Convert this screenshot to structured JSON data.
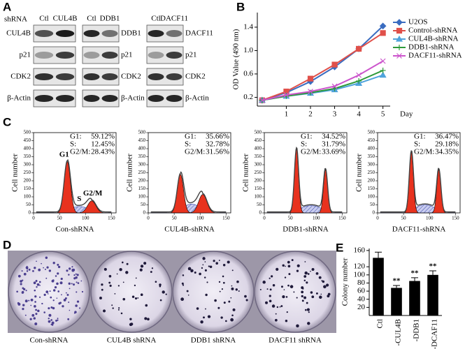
{
  "panel_labels": [
    "A",
    "B",
    "C",
    "D",
    "E"
  ],
  "blots": {
    "shrna_label": "shRNA",
    "groups": [
      {
        "lanes": [
          "Ctl",
          "CUL4B"
        ],
        "proteins": [
          "CUL4B",
          "p21",
          "CDK2",
          "β-Actin"
        ]
      },
      {
        "lanes": [
          "Ctl",
          "DDB1"
        ],
        "proteins": [
          "DDB1",
          "p21",
          "CDK2",
          "β-Actin"
        ]
      },
      {
        "lanes": [
          "Ctl",
          "DACF11"
        ],
        "proteins": [
          "DACF11",
          "p21",
          "CDK2",
          "β-Actin"
        ]
      }
    ]
  },
  "chart_data": [
    {
      "type": "line",
      "y_label": "OD Value (490 nm)",
      "x_label": "Day",
      "x": [
        0,
        1,
        2,
        3,
        4,
        5
      ],
      "xlim": [
        -0.2,
        5.3
      ],
      "xticks": [
        1,
        2,
        3,
        4,
        5
      ],
      "ylim": [
        0.05,
        1.65
      ],
      "yticks": [
        0.2,
        0.6,
        {
          "value": 1,
          "label": "1.0"
        },
        1.4
      ],
      "legend": "top-right",
      "series": [
        {
          "name": "U2OS",
          "color": "#3a6cc0",
          "marker": "diamond",
          "values": [
            0.15,
            0.28,
            0.47,
            0.72,
            1.03,
            1.42
          ]
        },
        {
          "name": "Control-shRNA",
          "color": "#e0504a",
          "marker": "square",
          "values": [
            0.15,
            0.3,
            0.52,
            0.76,
            1.03,
            1.3
          ]
        },
        {
          "name": "CUL4B-shRNA",
          "color": "#4fa3dc",
          "marker": "triangle",
          "values": [
            0.15,
            0.22,
            0.27,
            0.33,
            0.44,
            0.58
          ]
        },
        {
          "name": "DDB1-shRNA",
          "color": "#2e9a3a",
          "marker": "cross",
          "values": [
            0.15,
            0.22,
            0.28,
            0.35,
            0.48,
            0.66
          ]
        },
        {
          "name": "DACF11-shRNA",
          "color": "#cc55cc",
          "marker": "x",
          "values": [
            0.15,
            0.24,
            0.3,
            0.39,
            0.58,
            0.82
          ]
        }
      ]
    },
    {
      "type": "bar",
      "y_label": "Colony number",
      "categories": [
        "Ctl",
        "-CUL4B",
        "-DDB1",
        "-DCAF11"
      ],
      "values": [
        142,
        68,
        85,
        100
      ],
      "errors": [
        14,
        6,
        8,
        10
      ],
      "significance": [
        null,
        "**",
        "**",
        "**"
      ],
      "color": "#000000",
      "ylim": [
        0,
        165
      ],
      "yticks": [
        20,
        40,
        60,
        80,
        100,
        120,
        160
      ]
    }
  ],
  "flow": {
    "y_label": "Cell number",
    "yticks": [
      0,
      50,
      100,
      150,
      200,
      250,
      300,
      350,
      400,
      450,
      500
    ],
    "xticks": [
      0,
      50,
      100,
      150
    ],
    "panels": [
      {
        "name": "Con-shRNA",
        "stats": [
          {
            "label": "G1:",
            "value": "59.12%"
          },
          {
            "label": "S:",
            "value": "12.45%"
          },
          {
            "label": "G2/M:",
            "value": "28.43%"
          }
        ],
        "peaks": [
          "G1",
          "S",
          "G2/M"
        ]
      },
      {
        "name": "CUL4B-shRNA",
        "stats": [
          {
            "label": "G1:",
            "value": "35.66%"
          },
          {
            "label": "S:",
            "value": "32.78%"
          },
          {
            "label": "G2/M:",
            "value": "31.56%"
          }
        ]
      },
      {
        "name": "DDB1-shRNA",
        "stats": [
          {
            "label": "G1:",
            "value": "34.52%"
          },
          {
            "label": "S:",
            "value": "31.79%"
          },
          {
            "label": "G2/M:",
            "value": "33.69%"
          }
        ]
      },
      {
        "name": "DACF11-shRNA",
        "stats": [
          {
            "label": "G1:",
            "value": "36.47%"
          },
          {
            "label": "S:",
            "value": "29.18%"
          },
          {
            "label": "G2/M:",
            "value": "34.35%"
          }
        ]
      }
    ]
  },
  "colonies": {
    "labels": [
      "Con-shRNA",
      "CUL4B shRNA",
      "DDB1 shRNA",
      "DACF11 shRNA"
    ]
  }
}
